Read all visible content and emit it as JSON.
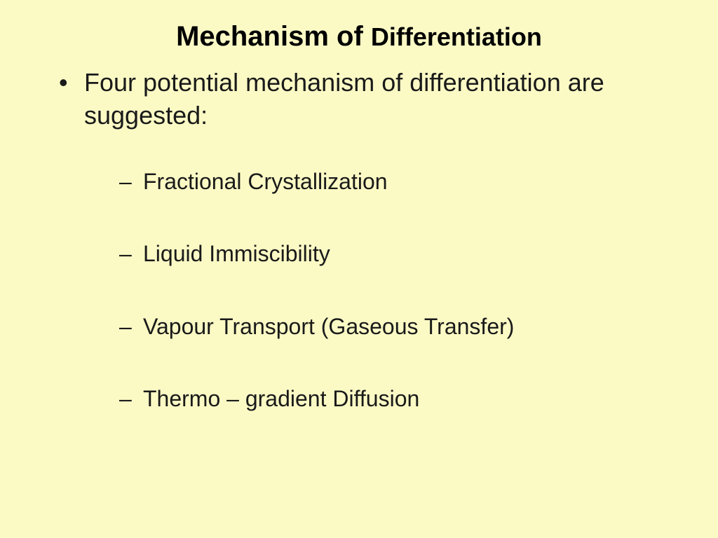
{
  "title": {
    "part1": "Mechanism of ",
    "part2": "Differentiation"
  },
  "intro": "Four potential mechanism of differentiation are suggested:",
  "items": [
    "Fractional Crystallization",
    "Liquid Immiscibility",
    "Vapour Transport (Gaseous Transfer)",
    "Thermo – gradient Diffusion"
  ],
  "colors": {
    "background": "#fbfac5",
    "text": "#1a1a1a"
  },
  "typography": {
    "title_main_size": 40,
    "title_sub_size": 36,
    "bullet_size": 36,
    "sub_size": 32
  }
}
